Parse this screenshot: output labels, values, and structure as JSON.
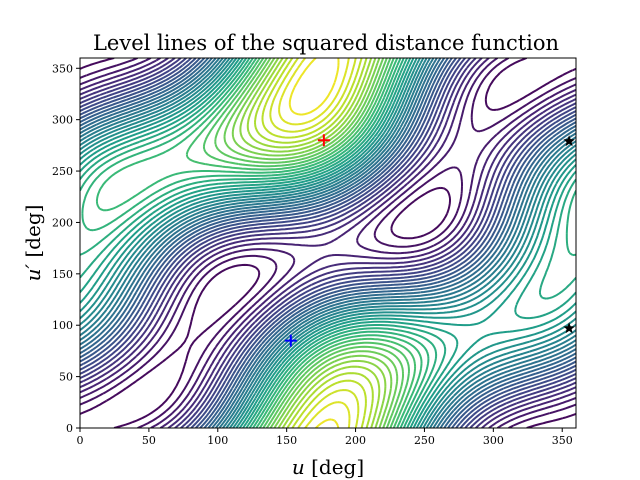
{
  "chart_data": {
    "type": "contour",
    "title": "Level lines of the squared distance function",
    "xlabel_var": "u",
    "xlabel_unit": " [deg]",
    "ylabel_var": "u′",
    "ylabel_unit": " [deg]",
    "xlim": [
      0,
      360
    ],
    "ylim": [
      0,
      360
    ],
    "xticks": [
      0,
      50,
      100,
      150,
      200,
      250,
      300,
      350
    ],
    "yticks": [
      0,
      50,
      100,
      150,
      200,
      250,
      300,
      350
    ],
    "colormap": "viridis",
    "grid": false,
    "markers": [
      {
        "kind": "plus",
        "color": "#ff0000",
        "x": 177,
        "y": 280
      },
      {
        "kind": "plus",
        "color": "#0000ff",
        "x": 153,
        "y": 85
      },
      {
        "kind": "star",
        "color": "#000000",
        "x": 355,
        "y": 279
      },
      {
        "kind": "star",
        "color": "#000000",
        "x": 355,
        "y": 97
      }
    ],
    "field": {
      "function": "squared distance",
      "max_point": [
        177,
        280
      ],
      "saddle_points": [
        [
          355,
          279
        ],
        [
          355,
          97
        ]
      ],
      "min_point": [
        153,
        85
      ]
    }
  }
}
